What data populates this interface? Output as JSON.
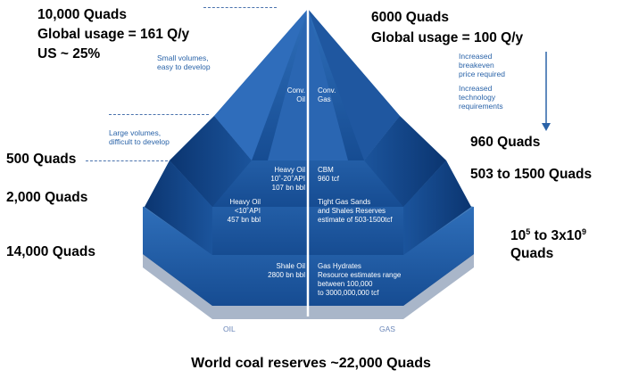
{
  "left_labels": {
    "top": [
      "10,000 Quads",
      "Global usage = 161 Q/y",
      "US ~ 25%"
    ],
    "l2": "500 Quads",
    "l3": "2,000 Quads",
    "l4": "14,000 Quads"
  },
  "right_labels": {
    "top": [
      "6000 Quads",
      "Global usage = 100 Q/y"
    ],
    "r2": "960 Quads",
    "r3": "503 to 1500 Quads",
    "r4_base": "10",
    "r4_exp1": "5",
    "r4_mid": " to 3x10",
    "r4_exp2": "9",
    "r4_line2": "Quads"
  },
  "notes": {
    "small": [
      "Small volumes,",
      "easy to develop"
    ],
    "large": [
      "Large volumes,",
      "difficult to develop"
    ],
    "arrow": [
      "Increased",
      "breakeven",
      "price required",
      "",
      "Increased",
      "technology",
      "requirements"
    ]
  },
  "tiers": {
    "oil": [
      [
        "Conv.",
        "Oil"
      ],
      [
        "Heavy Oil",
        "10˚-20˚API",
        "107 bn bbl"
      ],
      [
        "Heavy Oil",
        "<10˚API",
        "457 bn bbl"
      ],
      [
        "Shale Oil",
        "2800 bn bbl"
      ]
    ],
    "gas": [
      [
        "Conv.",
        "Gas"
      ],
      [
        "CBM",
        "960 tcf"
      ],
      [
        "Tight Gas Sands",
        "and Shales Reserves",
        "estimate of 503-1500tcf"
      ],
      [
        "Gas Hydrates",
        "Resource estimates range",
        "between  100,000",
        "to 3000,000,000 tcf"
      ]
    ]
  },
  "axis": {
    "oil": "OIL",
    "gas": "GAS"
  },
  "footer": "World coal reserves ~22,000 Quads",
  "colors": {
    "dark": "#0d3f7e",
    "mid": "#1e5aa6",
    "light": "#3a7cc6",
    "highlight": "#6aa3dc",
    "note": "#2a63a8"
  }
}
